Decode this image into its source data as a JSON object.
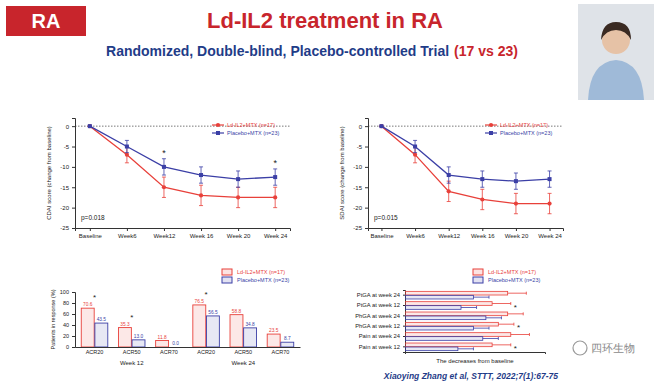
{
  "header": {
    "tag": "RA",
    "title": "Ld-IL2 treatment in RA",
    "subtitle": "Randomized, Double-blind, Placebo-controlled Trial",
    "subtitle_note": "(17 vs 23)"
  },
  "chart_data": [
    {
      "type": "line",
      "y_label": "CDAI score (change from baseline)",
      "categories": [
        "Baseline",
        "Week6",
        "Week12",
        "Week 16",
        "Week 20",
        "Week 24"
      ],
      "series": [
        {
          "name": "Ld-IL2+MTX (n=17)",
          "color": "#e8403a",
          "marker": "circle",
          "values": [
            0,
            -7,
            -15,
            -17,
            -17.5,
            -17.5
          ],
          "errors": [
            0,
            2,
            2.5,
            2.5,
            2.5,
            2.5
          ]
        },
        {
          "name": "Placebo+MTX (n=23)",
          "color": "#3b3fa6",
          "marker": "square",
          "values": [
            0,
            -5,
            -10,
            -12,
            -13,
            -12.5
          ],
          "errors": [
            0,
            1.5,
            2,
            2,
            2,
            2
          ]
        }
      ],
      "significance": [
        null,
        null,
        "*",
        null,
        null,
        "*"
      ],
      "annotation": "p=0.018",
      "ylim": [
        -25,
        2
      ],
      "yticks": [
        -25,
        -20,
        -15,
        -10,
        -5,
        0
      ],
      "legend": "top-right"
    },
    {
      "type": "line",
      "y_label": "SDAI score (change from baseline)",
      "categories": [
        "Baseline",
        "Week6",
        "Week12",
        "Week 16",
        "Week 20",
        "Week 24"
      ],
      "series": [
        {
          "name": "Ld-IL2+MTX (n=17)",
          "color": "#e8403a",
          "marker": "circle",
          "values": [
            0,
            -7,
            -16,
            -18,
            -19,
            -19
          ],
          "errors": [
            0,
            2,
            2.5,
            2.5,
            2.5,
            2.5
          ]
        },
        {
          "name": "Placebo+MTX (n=23)",
          "color": "#3b3fa6",
          "marker": "square",
          "values": [
            0,
            -5,
            -12,
            -13,
            -13.5,
            -13
          ],
          "errors": [
            0,
            1.5,
            2,
            2,
            2,
            2
          ]
        }
      ],
      "annotation": "p=0.015",
      "ylim": [
        -25,
        2
      ],
      "yticks": [
        -25,
        -20,
        -15,
        -10,
        -5,
        0
      ],
      "legend": "top-right"
    },
    {
      "type": "bar",
      "y_label": "Patients in response (%)",
      "categories": [
        "ACR20",
        "ACR50",
        "ACR70",
        "ACR20",
        "ACR50",
        "ACR70"
      ],
      "x_groups": [
        "Week 12",
        "Week 24"
      ],
      "series": [
        {
          "name": "Ld-IL2+MTX (n=17)",
          "color": "#e8403a",
          "values": [
            70.6,
            35.3,
            11.8,
            76.5,
            58.8,
            23.5
          ],
          "value_labels": [
            "70.6",
            "35.3",
            "11.8",
            "76.5",
            "58.8",
            "23.5"
          ]
        },
        {
          "name": "Placebo+MTX (n=23)",
          "color": "#3b3fa6",
          "values": [
            43.5,
            13.0,
            0.0,
            56.5,
            34.8,
            8.7
          ],
          "value_labels": [
            "43.5",
            "13.0",
            "0.0",
            "56.5",
            "34.8",
            "8.7"
          ]
        }
      ],
      "data_labels": true,
      "significance": [
        "*",
        "*",
        null,
        "*",
        null,
        null
      ],
      "ylim": [
        0,
        100
      ],
      "yticks": [
        0,
        20,
        40,
        60,
        80,
        100
      ],
      "legend": "top-right"
    },
    {
      "type": "bar",
      "orientation": "horizontal",
      "x_label": "The decreases from baseline",
      "categories": [
        "PtGA at week 24",
        "PtGA at week 12",
        "PhGA at week 24",
        "PhGA at week 12",
        "Pain at week 24",
        "Pain at week 12"
      ],
      "series": [
        {
          "name": "Ld-IL2+MTX (n=17)",
          "color": "#e8403a",
          "values": [
            33,
            28,
            33,
            30,
            34,
            28
          ],
          "errors": [
            6,
            6,
            5,
            5,
            6,
            6
          ]
        },
        {
          "name": "Placebo+MTX (n=23)",
          "color": "#3b3fa6",
          "values": [
            22,
            18,
            26,
            22,
            25,
            17
          ],
          "errors": [
            5,
            5,
            5,
            5,
            5,
            5
          ]
        }
      ],
      "significance": [
        null,
        "*",
        null,
        "*",
        null,
        "*"
      ],
      "xlim": [
        0,
        45
      ],
      "tick_labels": "y",
      "legend": "top-right"
    }
  ],
  "citation": "Xiaoying Zhang et al, STTT, 2022;7(1):67-75",
  "watermark": "四环生物"
}
